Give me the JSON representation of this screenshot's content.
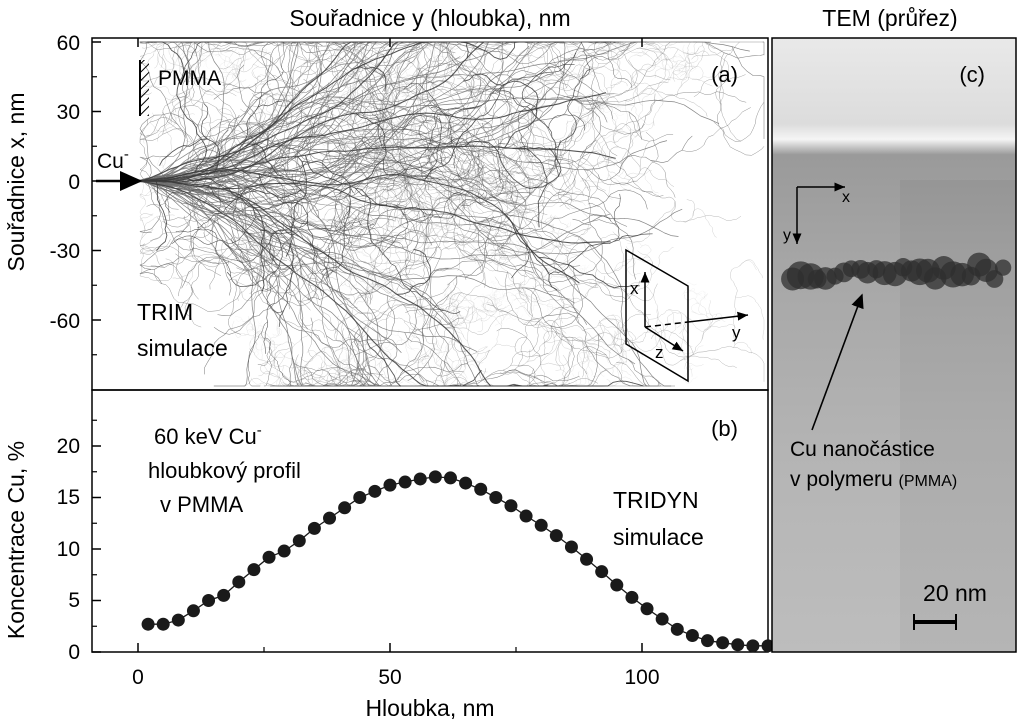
{
  "top_title": "Souřadnice y (hloubka), nm",
  "tem_title": "TEM (průřez)",
  "panel_a": {
    "tag": "(a)",
    "ylabel": "Souřadnice x, nm",
    "yticks": [
      "60",
      "30",
      "0",
      "-30",
      "-60"
    ],
    "pmma_label": "PMMA",
    "ion_label": "Cu",
    "ion_charge": "-",
    "sim_line1": "TRIM",
    "sim_line2": "simulace",
    "axis_x": "x",
    "axis_y": "y",
    "axis_z": "z"
  },
  "panel_b": {
    "tag": "(b)",
    "ylabel": "Koncentrace Cu, %",
    "xlabel": "Hloubka, nm",
    "yticks": [
      "0",
      "5",
      "10",
      "15",
      "20"
    ],
    "xticks": [
      "0",
      "50",
      "100"
    ],
    "note_line1": "60 keV Cu",
    "note_charge": "-",
    "note_line2": "hloubkový profil",
    "note_line3": "v PMMA",
    "sim_line1": "TRIDYN",
    "sim_line2": "simulace"
  },
  "panel_c": {
    "tag": "(c)",
    "axis_x": "x",
    "axis_y": "y",
    "particles_line1": "Cu nanočástice",
    "particles_line2": "v polymeru",
    "particles_paren": "(PMMA)",
    "scale_label": "20 nm"
  },
  "chart_data": [
    {
      "type": "scatter",
      "panel": "a",
      "title": "",
      "xlabel": "Souřadnice y (hloubka), nm",
      "ylabel": "Souřadnice x, nm",
      "xlim": [
        -9,
        125
      ],
      "ylim": [
        -90,
        66
      ],
      "series": [
        {
          "name": "TRIM simulace",
          "values": [],
          "description_note": ""
        }
      ]
    },
    {
      "type": "line",
      "panel": "b",
      "title": "",
      "xlabel": "Hloubka, nm",
      "ylabel": "Koncentrace Cu, %",
      "xlim": [
        -9,
        125
      ],
      "ylim": [
        0,
        25
      ],
      "series": [
        {
          "name": "TRIDYN simulace",
          "x": [
            2,
            5,
            8,
            11,
            14,
            17,
            20,
            23,
            26,
            29,
            32,
            35,
            38,
            41,
            44,
            47,
            50,
            53,
            56,
            59,
            62,
            65,
            68,
            71,
            74,
            77,
            80,
            83,
            86,
            89,
            92,
            95,
            98,
            101,
            104,
            107,
            110,
            113,
            116,
            119,
            122,
            125
          ],
          "values": [
            2.7,
            2.7,
            3.1,
            4.0,
            5.0,
            5.5,
            6.8,
            8.0,
            9.2,
            9.8,
            10.8,
            12.0,
            13.0,
            14.0,
            15.0,
            15.6,
            16.2,
            16.5,
            16.8,
            17.0,
            16.9,
            16.4,
            15.8,
            15.0,
            14.2,
            13.2,
            12.3,
            11.3,
            10.2,
            9.0,
            7.8,
            6.5,
            5.3,
            4.2,
            3.2,
            2.2,
            1.6,
            1.1,
            0.9,
            0.7,
            0.6,
            0.6
          ]
        }
      ]
    }
  ],
  "colors": {
    "marker": "#1a1a1a",
    "trajectory": "#707070",
    "tem_bg": "#b9b9b9",
    "tem_top": "#e6e6e6"
  }
}
